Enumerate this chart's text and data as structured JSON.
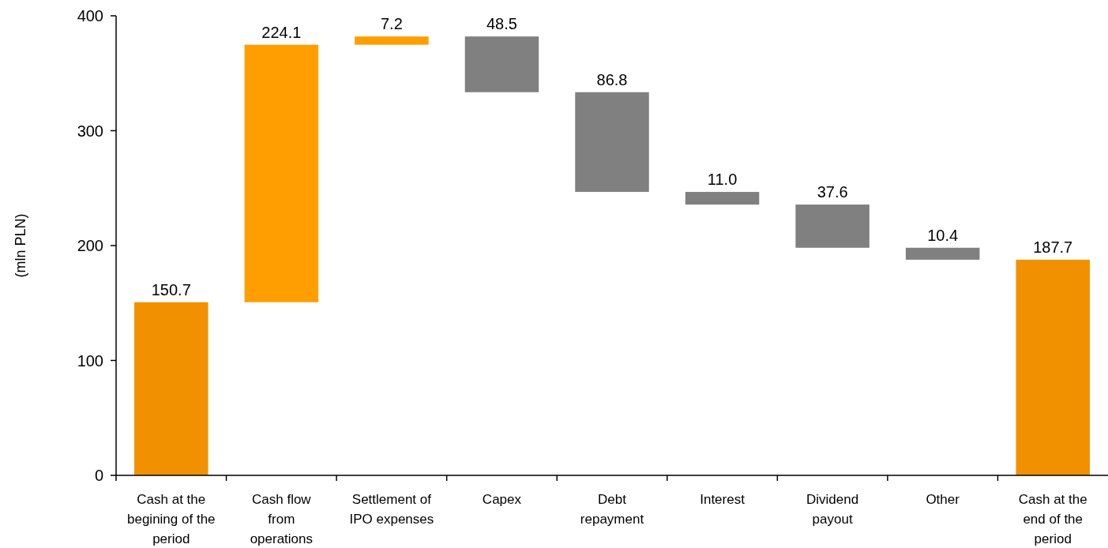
{
  "chart_data": {
    "type": "bar",
    "ylabel": "(mln PLN)",
    "categories": [
      "Cash at the begining of the period",
      "Cash flow from operations",
      "Settlement of IPO expenses",
      "Capex",
      "Debt repayment",
      "Interest",
      "Dividend payout",
      "Other",
      "Cash at the end of the period"
    ],
    "values": [
      150.7,
      224.1,
      7.2,
      48.5,
      86.8,
      11.0,
      37.6,
      10.4,
      187.7
    ],
    "base": [
      0,
      150.7,
      374.8,
      333.5,
      246.7,
      235.7,
      198.1,
      187.7,
      0
    ],
    "colors": [
      "#f29100",
      "#ff9e00",
      "#ff9e00",
      "#808080",
      "#808080",
      "#808080",
      "#808080",
      "#808080",
      "#f29100"
    ],
    "value_labels": [
      "150.7",
      "224.1",
      "7.2",
      "48.5",
      "86.8",
      "11.0",
      "37.6",
      "10.4",
      "187.7"
    ],
    "ylim": [
      0,
      400
    ],
    "yticks": [
      0,
      100,
      200,
      300,
      400
    ]
  }
}
